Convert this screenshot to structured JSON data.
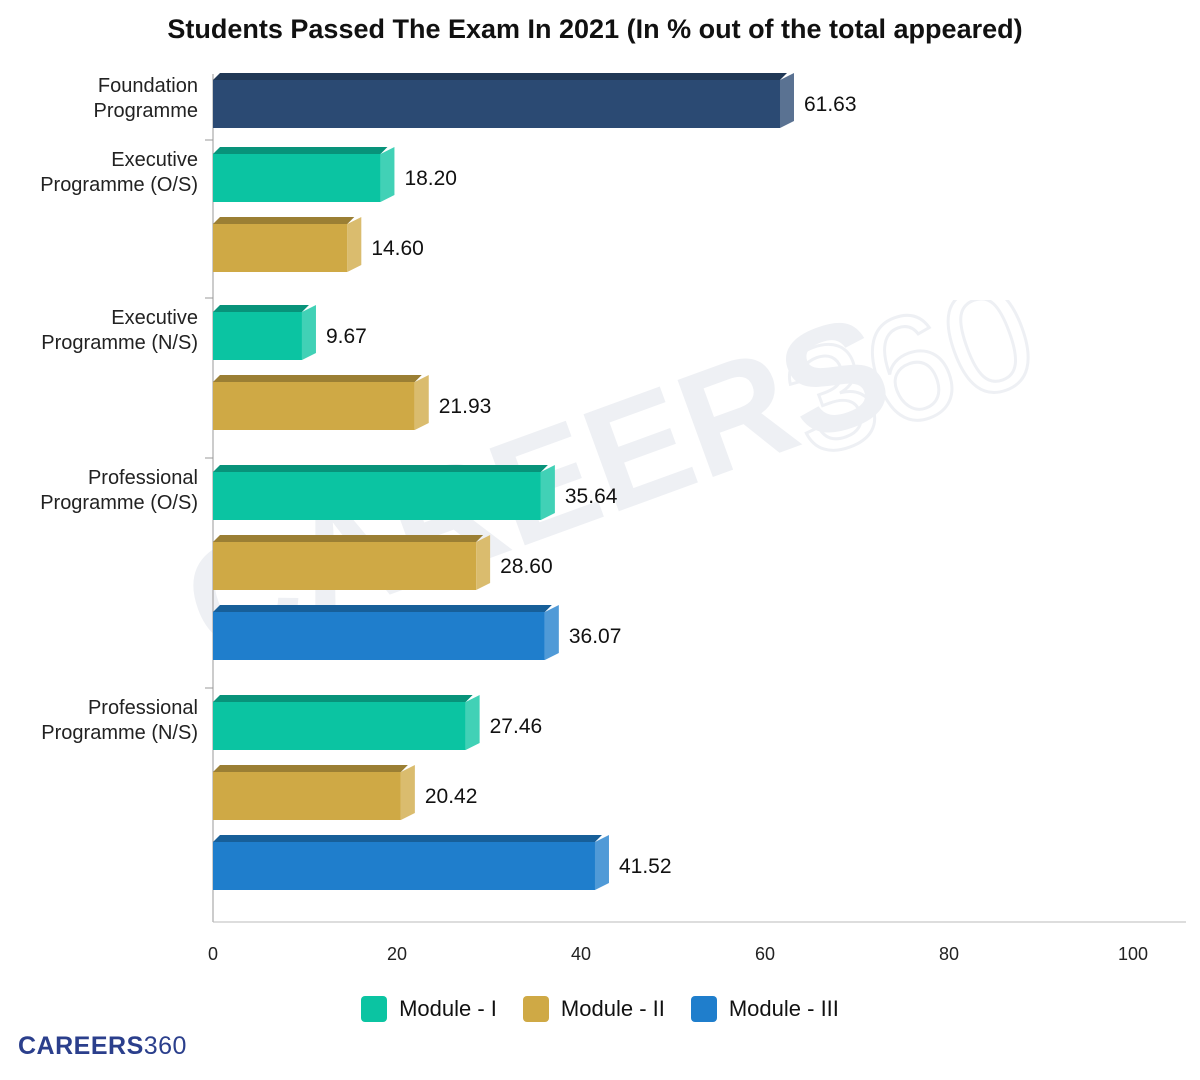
{
  "chart_data": {
    "type": "bar",
    "orientation": "horizontal",
    "title": "Students Passed The Exam In 2021 (In % out of the total appeared)",
    "xlim": [
      0,
      100
    ],
    "xticks": [
      "0",
      "20",
      "40",
      "60",
      "80",
      "100"
    ],
    "legend_position": "bottom",
    "series": [
      {
        "name": "Module - I",
        "color": "#0BC4A2"
      },
      {
        "name": "Module - II",
        "color": "#CFA945"
      },
      {
        "name": "Module - III",
        "color": "#1F7ECC"
      }
    ],
    "groups": [
      {
        "label_lines": [
          "Foundation",
          "Programme"
        ],
        "bars": [
          {
            "series": 0,
            "value": 61.63,
            "label": "61.63",
            "color": "#2B4A73"
          }
        ]
      },
      {
        "label_lines": [
          "Executive",
          "Programme (O/S)"
        ],
        "bars": [
          {
            "series": 0,
            "value": 18.2,
            "label": "18.20"
          },
          {
            "series": 1,
            "value": 14.6,
            "label": "14.60"
          }
        ]
      },
      {
        "label_lines": [
          "Executive",
          "Programme (N/S)"
        ],
        "bars": [
          {
            "series": 0,
            "value": 9.67,
            "label": "9.67"
          },
          {
            "series": 1,
            "value": 21.93,
            "label": "21.93"
          }
        ]
      },
      {
        "label_lines": [
          "Professional",
          "Programme (O/S)"
        ],
        "bars": [
          {
            "series": 0,
            "value": 35.64,
            "label": "35.64"
          },
          {
            "series": 1,
            "value": 28.6,
            "label": "28.60"
          },
          {
            "series": 2,
            "value": 36.07,
            "label": "36.07"
          }
        ]
      },
      {
        "label_lines": [
          "Professional",
          "Programme (N/S)"
        ],
        "bars": [
          {
            "series": 0,
            "value": 27.46,
            "label": "27.46"
          },
          {
            "series": 1,
            "value": 20.42,
            "label": "20.42"
          },
          {
            "series": 2,
            "value": 41.52,
            "label": "41.52"
          }
        ]
      }
    ]
  },
  "watermark": {
    "bold": "CAREERS",
    "light": "360"
  },
  "brand": {
    "bold": "CAREERS",
    "light": "360",
    "color": "#2B3F8C"
  }
}
